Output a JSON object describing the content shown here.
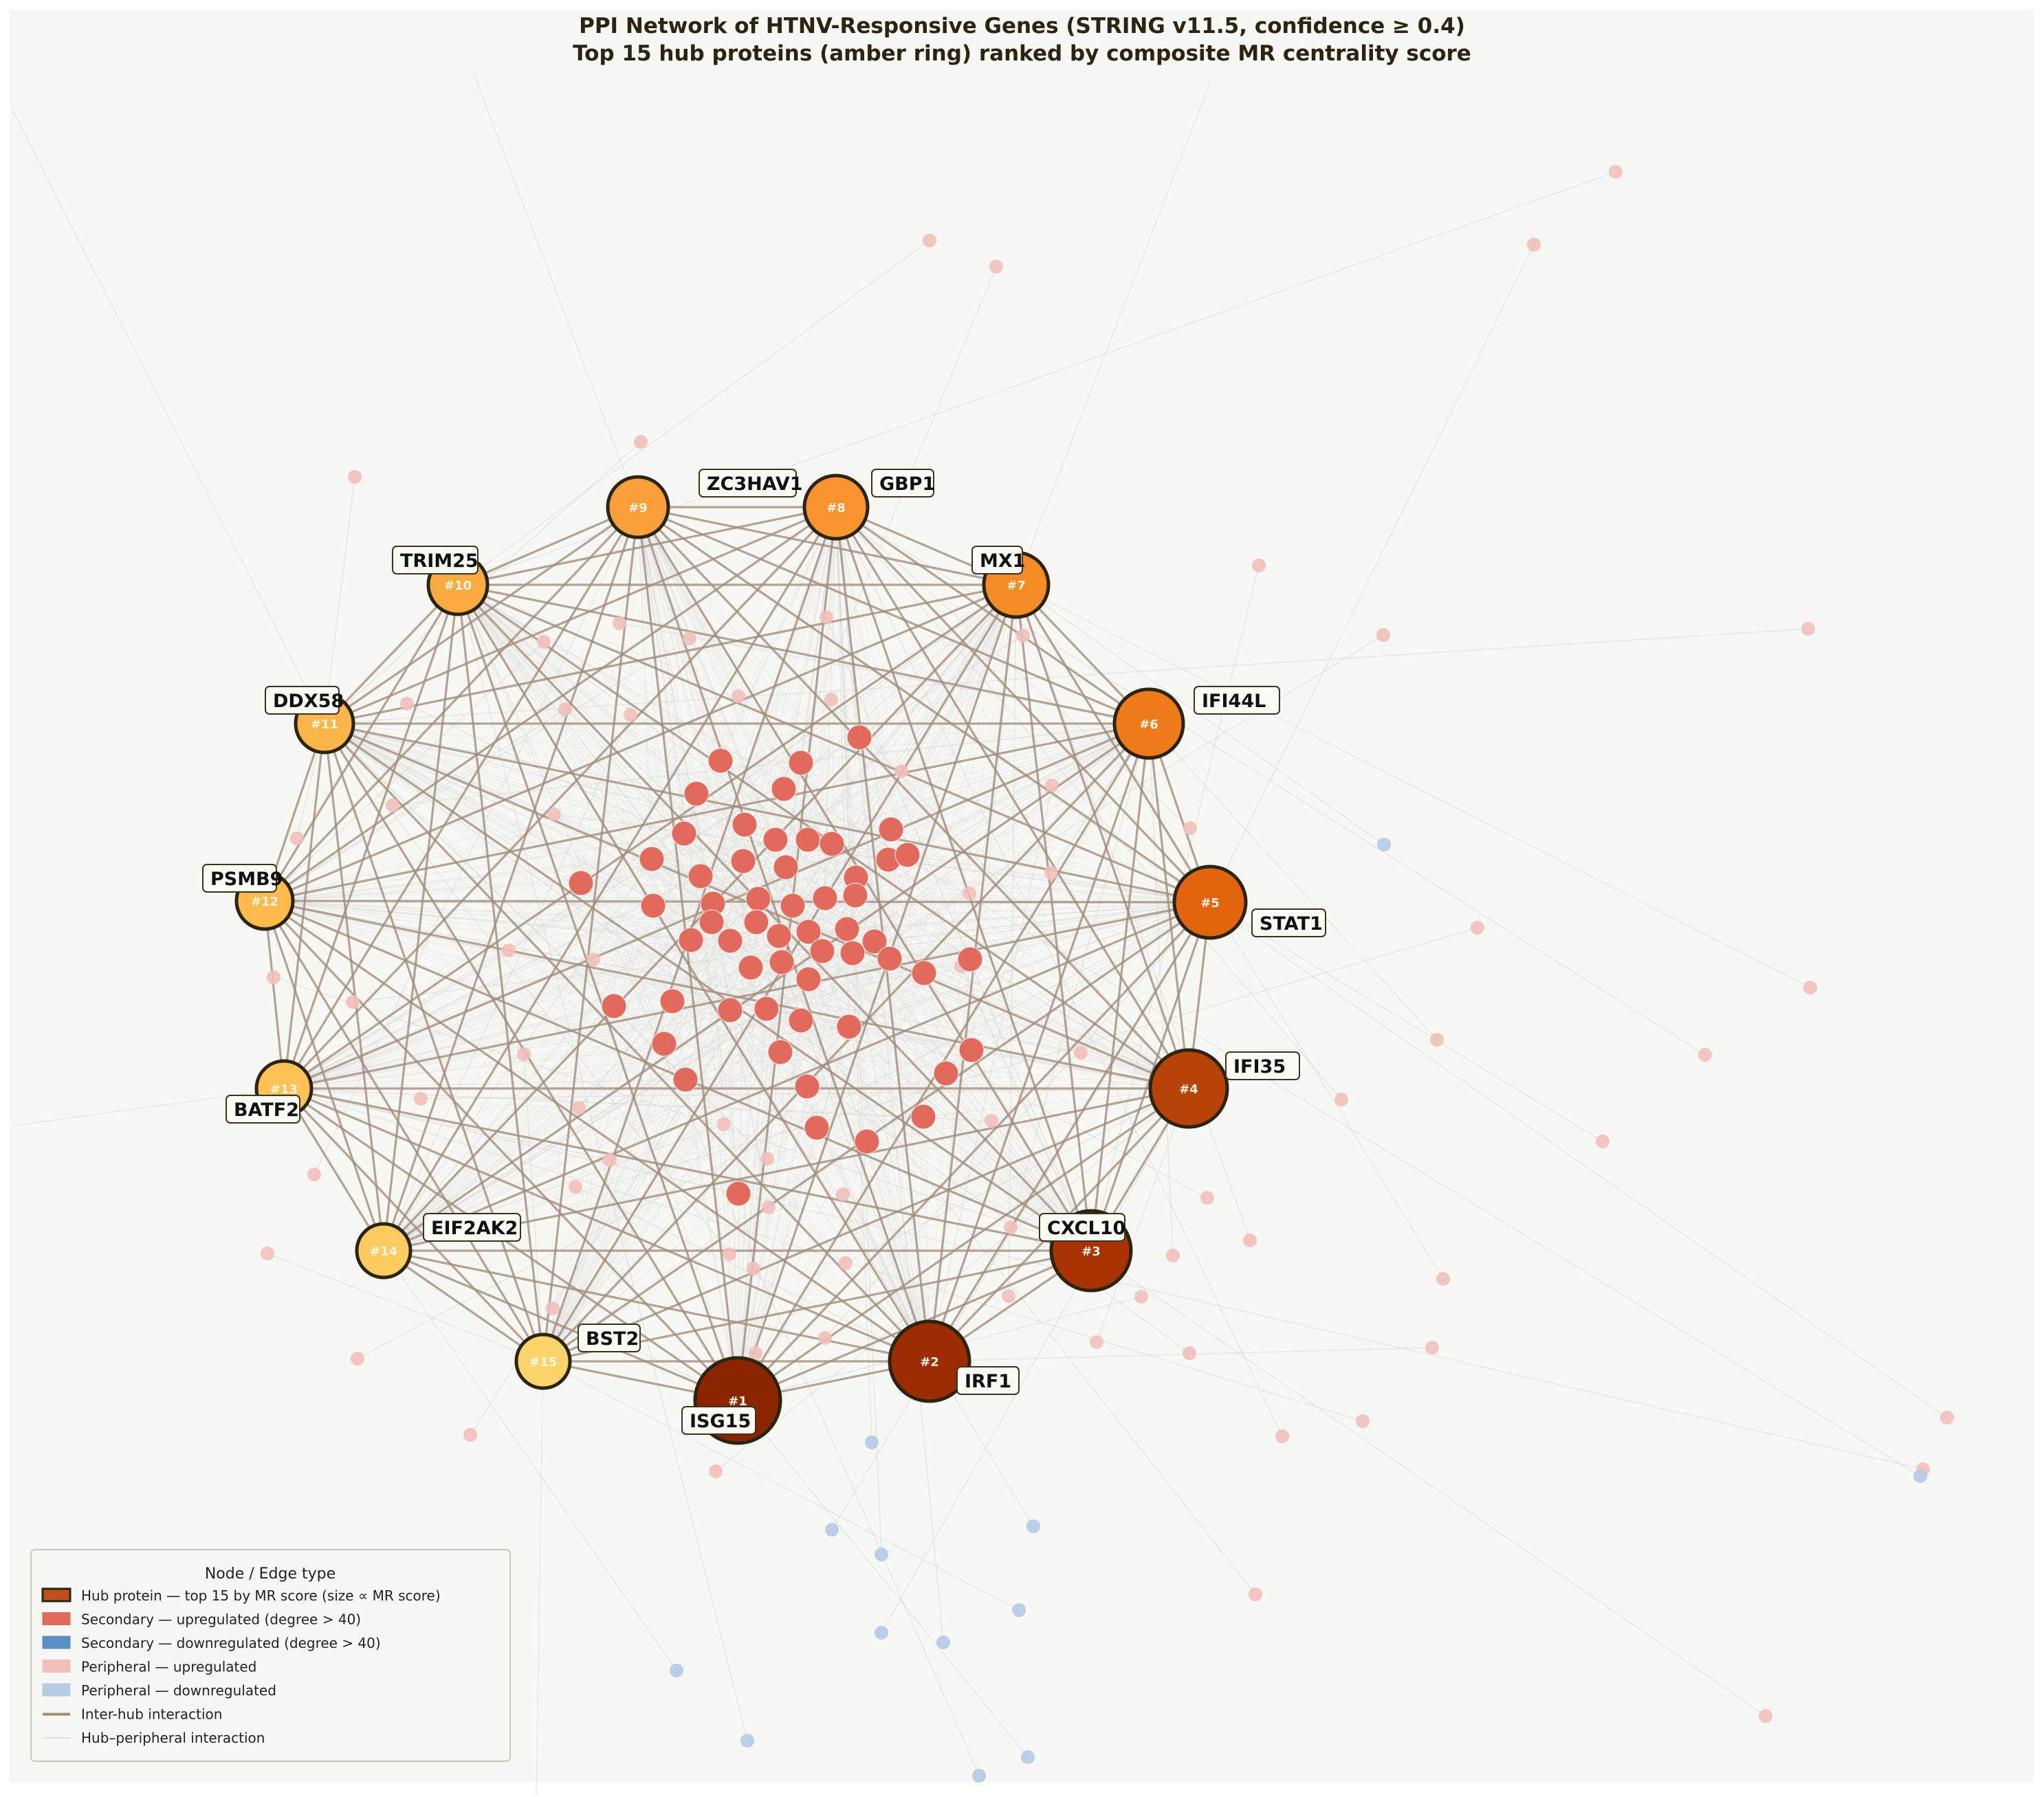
{
  "title": {
    "line1": "PPI Network of HTNV-Responsive Genes  (STRING v11.5, confidence ≥ 0.4)",
    "line2": "Top 15 hub proteins (amber ring) ranked by composite MR centrality score"
  },
  "colors": {
    "background": "#f7f7f4",
    "inter_hub_edge": "#a08c7a",
    "peripheral_edge": "#d8d8d8",
    "secondary_up": "#e26a5c",
    "secondary_down": "#5a8fc4",
    "peripheral_up": "#f2bfba",
    "peripheral_down": "#b6cce6",
    "hub_outline": "#2b2410",
    "hub_scale": [
      "#8b2500",
      "#9c2d02",
      "#a93203",
      "#b84306",
      "#e2640f",
      "#ef7a1a",
      "#f48b24",
      "#f89330",
      "#f9a03a",
      "#fbab40",
      "#fcb548",
      "#fdba4d",
      "#fdc255",
      "#fecb60",
      "#fed36a"
    ]
  },
  "hubs": [
    {
      "rank": "#1",
      "label": "ISG15"
    },
    {
      "rank": "#2",
      "label": "IRF1"
    },
    {
      "rank": "#3",
      "label": "CXCL10"
    },
    {
      "rank": "#4",
      "label": "IFI35"
    },
    {
      "rank": "#5",
      "label": "STAT1"
    },
    {
      "rank": "#6",
      "label": "IFI44L"
    },
    {
      "rank": "#7",
      "label": "MX1"
    },
    {
      "rank": "#8",
      "label": "GBP1"
    },
    {
      "rank": "#9",
      "label": "ZC3HAV1"
    },
    {
      "rank": "#10",
      "label": "TRIM25"
    },
    {
      "rank": "#11",
      "label": "DDX58"
    },
    {
      "rank": "#12",
      "label": "PSMB9"
    },
    {
      "rank": "#13",
      "label": "BATF2"
    },
    {
      "rank": "#14",
      "label": "EIF2AK2"
    },
    {
      "rank": "#15",
      "label": "BST2"
    }
  ],
  "legend": {
    "title": "Node / Edge type",
    "items": [
      {
        "label": "Hub protein — top 15 by MR score (size ∝ MR score)",
        "kind": "patch",
        "color": "#c0501a"
      },
      {
        "label": "Secondary — upregulated (degree > 40)",
        "kind": "patch",
        "color": "#e26a5c"
      },
      {
        "label": "Secondary — downregulated (degree > 40)",
        "kind": "patch",
        "color": "#5a8fc4"
      },
      {
        "label": "Peripheral — upregulated",
        "kind": "patch",
        "color": "#f2bfba"
      },
      {
        "label": "Peripheral — downregulated",
        "kind": "patch",
        "color": "#b6cce6"
      },
      {
        "label": "Inter-hub interaction",
        "kind": "line",
        "color": "#a08c7a"
      },
      {
        "label": "Hub–peripheral interaction",
        "kind": "line",
        "color": "#d8d8d8"
      }
    ]
  }
}
